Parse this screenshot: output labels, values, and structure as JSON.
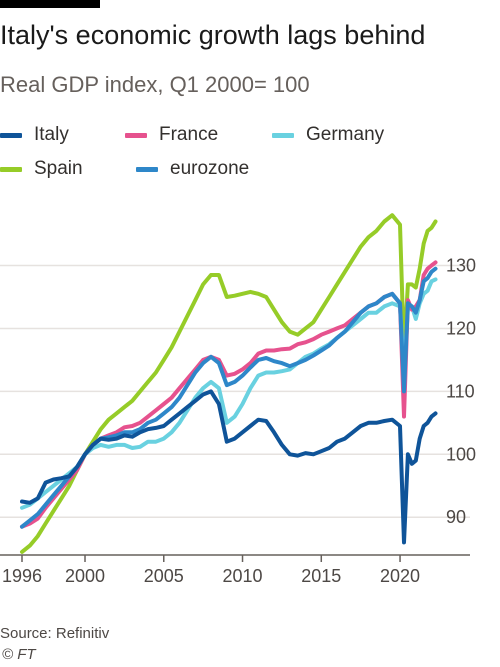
{
  "header": {
    "title": "Italy's economic growth lags behind",
    "subtitle": "Real GDP index, Q1 2000= 100"
  },
  "footer": {
    "source": "Source: Refinitiv",
    "credit": "© FT"
  },
  "chart_data": {
    "type": "line",
    "title": "Italy's economic growth lags behind",
    "subtitle": "Real GDP index, Q1 2000= 100",
    "xlabel": "",
    "ylabel": "",
    "xlim": [
      1996,
      2022.6
    ],
    "ylim": [
      84,
      142
    ],
    "x_ticks": [
      1996,
      2000,
      2005,
      2010,
      2015,
      2020
    ],
    "x_tick_labels": [
      "1996",
      "2000",
      "2005",
      "2010",
      "2015",
      "2020"
    ],
    "y_ticks": [
      90,
      100,
      110,
      120,
      130
    ],
    "y_tick_labels": [
      "90",
      "100",
      "110",
      "120",
      "130"
    ],
    "y_axis_side": "right",
    "grid": true,
    "legend": "top",
    "series": [
      {
        "name": "Italy",
        "color": "#0f5499",
        "points": [
          [
            1996.0,
            92.5
          ],
          [
            1996.5,
            92.3
          ],
          [
            1997.0,
            93.0
          ],
          [
            1997.5,
            95.5
          ],
          [
            1998.0,
            96.0
          ],
          [
            1998.5,
            96.2
          ],
          [
            1999.0,
            96.5
          ],
          [
            1999.5,
            98.0
          ],
          [
            2000.0,
            100.0
          ],
          [
            2000.5,
            101.5
          ],
          [
            2001.0,
            102.5
          ],
          [
            2001.5,
            102.3
          ],
          [
            2002.0,
            102.5
          ],
          [
            2002.5,
            103.0
          ],
          [
            2003.0,
            102.8
          ],
          [
            2003.5,
            103.5
          ],
          [
            2004.0,
            104.0
          ],
          [
            2004.5,
            104.2
          ],
          [
            2005.0,
            104.5
          ],
          [
            2005.5,
            105.5
          ],
          [
            2006.0,
            106.5
          ],
          [
            2006.5,
            107.5
          ],
          [
            2007.0,
            108.5
          ],
          [
            2007.5,
            109.5
          ],
          [
            2008.0,
            110.0
          ],
          [
            2008.5,
            108.0
          ],
          [
            2009.0,
            102.0
          ],
          [
            2009.5,
            102.5
          ],
          [
            2010.0,
            103.5
          ],
          [
            2010.5,
            104.5
          ],
          [
            2011.0,
            105.5
          ],
          [
            2011.5,
            105.3
          ],
          [
            2012.0,
            103.5
          ],
          [
            2012.5,
            101.5
          ],
          [
            2013.0,
            100.0
          ],
          [
            2013.5,
            99.8
          ],
          [
            2014.0,
            100.2
          ],
          [
            2014.5,
            100.0
          ],
          [
            2015.0,
            100.5
          ],
          [
            2015.5,
            101.0
          ],
          [
            2016.0,
            102.0
          ],
          [
            2016.5,
            102.5
          ],
          [
            2017.0,
            103.5
          ],
          [
            2017.5,
            104.5
          ],
          [
            2018.0,
            105.0
          ],
          [
            2018.5,
            105.0
          ],
          [
            2019.0,
            105.3
          ],
          [
            2019.5,
            105.5
          ],
          [
            2020.0,
            104.5
          ],
          [
            2020.25,
            86.0
          ],
          [
            2020.5,
            100.0
          ],
          [
            2020.75,
            98.5
          ],
          [
            2021.0,
            99.0
          ],
          [
            2021.25,
            102.5
          ],
          [
            2021.5,
            104.5
          ],
          [
            2021.75,
            105.0
          ],
          [
            2022.0,
            106.0
          ],
          [
            2022.25,
            106.5
          ]
        ]
      },
      {
        "name": "France",
        "color": "#e6528e",
        "points": [
          [
            1996.0,
            88.5
          ],
          [
            1996.5,
            89.0
          ],
          [
            1997.0,
            89.8
          ],
          [
            1997.5,
            91.5
          ],
          [
            1998.0,
            93.0
          ],
          [
            1998.5,
            94.5
          ],
          [
            1999.0,
            96.0
          ],
          [
            1999.5,
            97.5
          ],
          [
            2000.0,
            100.0
          ],
          [
            2000.5,
            101.5
          ],
          [
            2001.0,
            102.5
          ],
          [
            2001.5,
            103.0
          ],
          [
            2002.0,
            103.5
          ],
          [
            2002.5,
            104.3
          ],
          [
            2003.0,
            104.5
          ],
          [
            2003.5,
            105.0
          ],
          [
            2004.0,
            106.0
          ],
          [
            2004.5,
            107.0
          ],
          [
            2005.0,
            108.0
          ],
          [
            2005.5,
            109.0
          ],
          [
            2006.0,
            110.5
          ],
          [
            2006.5,
            112.0
          ],
          [
            2007.0,
            113.5
          ],
          [
            2007.5,
            115.0
          ],
          [
            2008.0,
            115.5
          ],
          [
            2008.5,
            115.0
          ],
          [
            2009.0,
            112.5
          ],
          [
            2009.5,
            112.8
          ],
          [
            2010.0,
            113.5
          ],
          [
            2010.5,
            114.5
          ],
          [
            2011.0,
            116.0
          ],
          [
            2011.5,
            116.5
          ],
          [
            2012.0,
            116.5
          ],
          [
            2012.5,
            116.7
          ],
          [
            2013.0,
            116.8
          ],
          [
            2013.5,
            117.5
          ],
          [
            2014.0,
            117.8
          ],
          [
            2014.5,
            118.3
          ],
          [
            2015.0,
            119.0
          ],
          [
            2015.5,
            119.5
          ],
          [
            2016.0,
            120.0
          ],
          [
            2016.5,
            120.5
          ],
          [
            2017.0,
            121.5
          ],
          [
            2017.5,
            122.5
          ],
          [
            2018.0,
            123.5
          ],
          [
            2018.5,
            124.0
          ],
          [
            2019.0,
            125.0
          ],
          [
            2019.5,
            125.5
          ],
          [
            2020.0,
            124.0
          ],
          [
            2020.25,
            106.0
          ],
          [
            2020.5,
            124.5
          ],
          [
            2020.75,
            123.0
          ],
          [
            2021.0,
            123.5
          ],
          [
            2021.25,
            124.5
          ],
          [
            2021.5,
            128.5
          ],
          [
            2021.75,
            129.5
          ],
          [
            2022.0,
            130.0
          ],
          [
            2022.25,
            130.5
          ]
        ]
      },
      {
        "name": "Germany",
        "color": "#69d1e0",
        "points": [
          [
            1996.0,
            91.5
          ],
          [
            1996.5,
            92.0
          ],
          [
            1997.0,
            93.0
          ],
          [
            1997.5,
            94.0
          ],
          [
            1998.0,
            95.0
          ],
          [
            1998.5,
            96.0
          ],
          [
            1999.0,
            97.0
          ],
          [
            1999.5,
            98.0
          ],
          [
            2000.0,
            100.0
          ],
          [
            2000.5,
            101.0
          ],
          [
            2001.0,
            101.5
          ],
          [
            2001.5,
            101.2
          ],
          [
            2002.0,
            101.5
          ],
          [
            2002.5,
            101.5
          ],
          [
            2003.0,
            101.0
          ],
          [
            2003.5,
            101.2
          ],
          [
            2004.0,
            102.0
          ],
          [
            2004.5,
            102.0
          ],
          [
            2005.0,
            102.5
          ],
          [
            2005.5,
            103.5
          ],
          [
            2006.0,
            105.0
          ],
          [
            2006.5,
            107.0
          ],
          [
            2007.0,
            109.0
          ],
          [
            2007.5,
            110.5
          ],
          [
            2008.0,
            111.5
          ],
          [
            2008.5,
            110.5
          ],
          [
            2009.0,
            105.0
          ],
          [
            2009.5,
            106.0
          ],
          [
            2010.0,
            108.0
          ],
          [
            2010.5,
            110.5
          ],
          [
            2011.0,
            112.5
          ],
          [
            2011.5,
            113.0
          ],
          [
            2012.0,
            113.0
          ],
          [
            2012.5,
            113.2
          ],
          [
            2013.0,
            113.5
          ],
          [
            2013.5,
            114.5
          ],
          [
            2014.0,
            115.5
          ],
          [
            2014.5,
            116.0
          ],
          [
            2015.0,
            116.8
          ],
          [
            2015.5,
            117.5
          ],
          [
            2016.0,
            118.5
          ],
          [
            2016.5,
            119.5
          ],
          [
            2017.0,
            120.5
          ],
          [
            2017.5,
            121.5
          ],
          [
            2018.0,
            122.5
          ],
          [
            2018.5,
            122.5
          ],
          [
            2019.0,
            123.5
          ],
          [
            2019.5,
            124.0
          ],
          [
            2020.0,
            123.5
          ],
          [
            2020.25,
            113.5
          ],
          [
            2020.5,
            123.0
          ],
          [
            2020.75,
            123.5
          ],
          [
            2021.0,
            121.5
          ],
          [
            2021.25,
            124.0
          ],
          [
            2021.5,
            125.5
          ],
          [
            2021.75,
            126.0
          ],
          [
            2022.0,
            127.5
          ],
          [
            2022.25,
            127.8
          ]
        ]
      },
      {
        "name": "Spain",
        "color": "#96cc28",
        "points": [
          [
            1996.0,
            84.5
          ],
          [
            1996.5,
            85.5
          ],
          [
            1997.0,
            87.0
          ],
          [
            1997.5,
            89.0
          ],
          [
            1998.0,
            91.0
          ],
          [
            1998.5,
            93.0
          ],
          [
            1999.0,
            95.0
          ],
          [
            1999.5,
            97.5
          ],
          [
            2000.0,
            100.0
          ],
          [
            2000.5,
            102.0
          ],
          [
            2001.0,
            104.0
          ],
          [
            2001.5,
            105.5
          ],
          [
            2002.0,
            106.5
          ],
          [
            2002.5,
            107.5
          ],
          [
            2003.0,
            108.5
          ],
          [
            2003.5,
            110.0
          ],
          [
            2004.0,
            111.5
          ],
          [
            2004.5,
            113.0
          ],
          [
            2005.0,
            115.0
          ],
          [
            2005.5,
            117.0
          ],
          [
            2006.0,
            119.5
          ],
          [
            2006.5,
            122.0
          ],
          [
            2007.0,
            124.5
          ],
          [
            2007.5,
            127.0
          ],
          [
            2008.0,
            128.5
          ],
          [
            2008.5,
            128.5
          ],
          [
            2009.0,
            125.0
          ],
          [
            2009.5,
            125.2
          ],
          [
            2010.0,
            125.5
          ],
          [
            2010.5,
            125.8
          ],
          [
            2011.0,
            125.5
          ],
          [
            2011.5,
            125.0
          ],
          [
            2012.0,
            123.0
          ],
          [
            2012.5,
            121.0
          ],
          [
            2013.0,
            119.5
          ],
          [
            2013.5,
            119.0
          ],
          [
            2014.0,
            120.0
          ],
          [
            2014.5,
            121.0
          ],
          [
            2015.0,
            123.0
          ],
          [
            2015.5,
            125.0
          ],
          [
            2016.0,
            127.0
          ],
          [
            2016.5,
            129.0
          ],
          [
            2017.0,
            131.0
          ],
          [
            2017.5,
            133.0
          ],
          [
            2018.0,
            134.5
          ],
          [
            2018.5,
            135.5
          ],
          [
            2019.0,
            137.0
          ],
          [
            2019.5,
            138.0
          ],
          [
            2020.0,
            136.5
          ],
          [
            2020.25,
            116.0
          ],
          [
            2020.5,
            127.0
          ],
          [
            2020.75,
            127.0
          ],
          [
            2021.0,
            126.5
          ],
          [
            2021.25,
            129.5
          ],
          [
            2021.5,
            133.5
          ],
          [
            2021.75,
            135.5
          ],
          [
            2022.0,
            136.0
          ],
          [
            2022.25,
            137.0
          ]
        ]
      },
      {
        "name": "eurozone",
        "color": "#2e87c9",
        "points": [
          [
            1996.0,
            88.5
          ],
          [
            1996.5,
            89.5
          ],
          [
            1997.0,
            90.5
          ],
          [
            1997.5,
            92.0
          ],
          [
            1998.0,
            93.5
          ],
          [
            1998.5,
            95.0
          ],
          [
            1999.0,
            96.5
          ],
          [
            1999.5,
            98.0
          ],
          [
            2000.0,
            100.0
          ],
          [
            2000.5,
            101.5
          ],
          [
            2001.0,
            102.5
          ],
          [
            2001.5,
            102.7
          ],
          [
            2002.0,
            103.0
          ],
          [
            2002.5,
            103.5
          ],
          [
            2003.0,
            103.5
          ],
          [
            2003.5,
            104.0
          ],
          [
            2004.0,
            105.0
          ],
          [
            2004.5,
            105.5
          ],
          [
            2005.0,
            106.5
          ],
          [
            2005.5,
            107.5
          ],
          [
            2006.0,
            109.0
          ],
          [
            2006.5,
            111.0
          ],
          [
            2007.0,
            113.0
          ],
          [
            2007.5,
            114.5
          ],
          [
            2008.0,
            115.5
          ],
          [
            2008.5,
            114.5
          ],
          [
            2009.0,
            111.0
          ],
          [
            2009.5,
            111.5
          ],
          [
            2010.0,
            112.5
          ],
          [
            2010.5,
            113.8
          ],
          [
            2011.0,
            115.0
          ],
          [
            2011.5,
            115.3
          ],
          [
            2012.0,
            114.8
          ],
          [
            2012.5,
            114.5
          ],
          [
            2013.0,
            114.0
          ],
          [
            2013.5,
            114.5
          ],
          [
            2014.0,
            115.0
          ],
          [
            2014.5,
            115.7
          ],
          [
            2015.0,
            116.5
          ],
          [
            2015.5,
            117.3
          ],
          [
            2016.0,
            118.5
          ],
          [
            2016.5,
            119.5
          ],
          [
            2017.0,
            121.0
          ],
          [
            2017.5,
            122.5
          ],
          [
            2018.0,
            123.5
          ],
          [
            2018.5,
            124.0
          ],
          [
            2019.0,
            125.0
          ],
          [
            2019.5,
            125.5
          ],
          [
            2020.0,
            124.0
          ],
          [
            2020.25,
            110.0
          ],
          [
            2020.5,
            124.0
          ],
          [
            2020.75,
            123.5
          ],
          [
            2021.0,
            122.5
          ],
          [
            2021.25,
            124.5
          ],
          [
            2021.5,
            127.5
          ],
          [
            2021.75,
            128.0
          ],
          [
            2022.0,
            129.0
          ],
          [
            2022.25,
            129.5
          ]
        ]
      }
    ]
  }
}
